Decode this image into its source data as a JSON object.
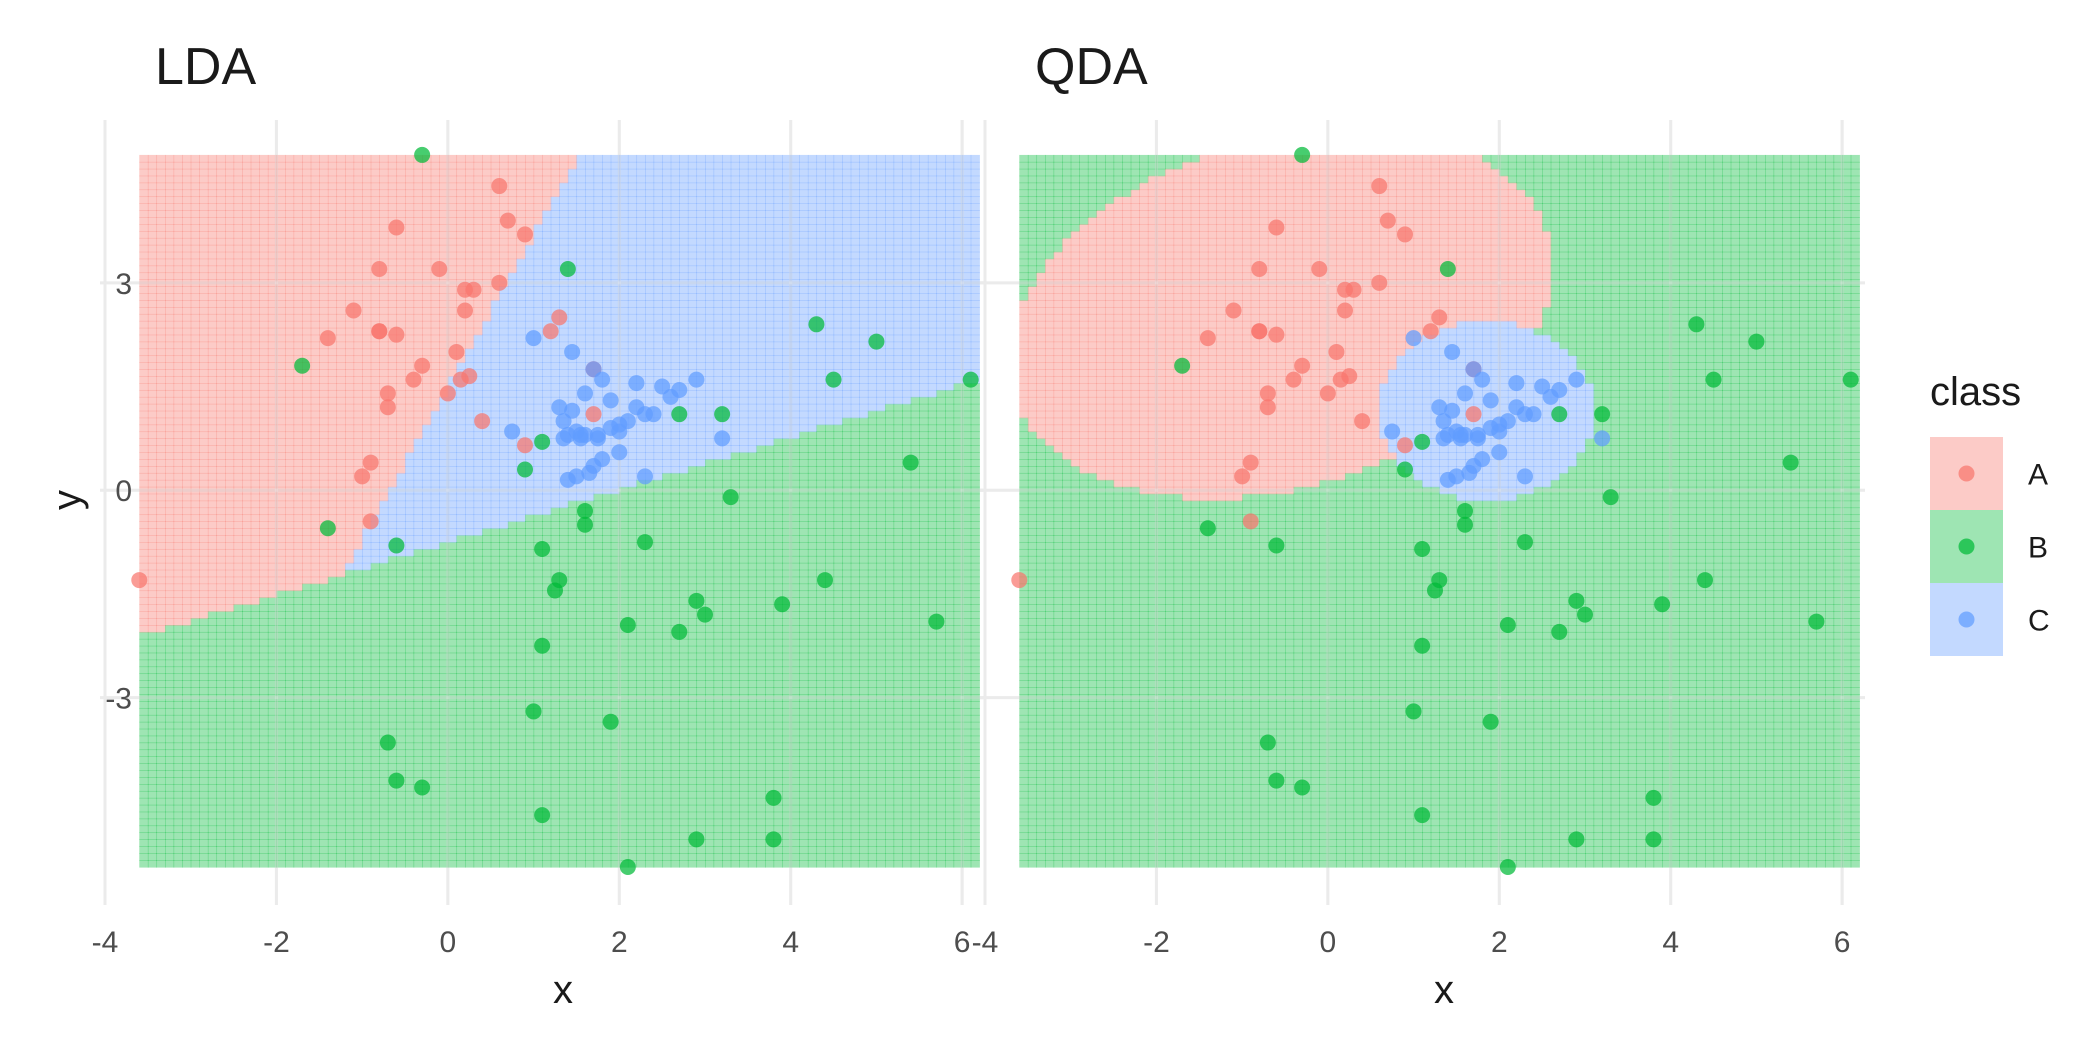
{
  "colors": {
    "A": "#F8766D",
    "B": "#00BA38",
    "C": "#619CFF",
    "grid": "#EBEBEB",
    "text": "#1A1A1A",
    "tick_text": "#4D4D4D"
  },
  "legend": {
    "title": "class",
    "entries": [
      {
        "label": "A",
        "class": "A"
      },
      {
        "label": "B",
        "class": "B"
      },
      {
        "label": "C",
        "class": "C"
      }
    ]
  },
  "chart_data": [
    {
      "type": "scatter",
      "title": "LDA",
      "xlabel": "x",
      "ylabel": "y",
      "xlim": [
        -4,
        6.5
      ],
      "ylim": [
        -6,
        5.5
      ],
      "xticks": [
        -4,
        -2,
        0,
        2,
        4,
        6
      ],
      "yticks": [
        -3,
        0,
        3
      ],
      "grid": true,
      "region_extent": {
        "x": [
          -3.6,
          6.2
        ],
        "y": [
          -5.45,
          4.85
        ]
      },
      "boundary": "linear",
      "series": [
        {
          "name": "A",
          "x": [
            -0.6,
            -0.1,
            0.6,
            0.9,
            -0.8,
            0.3,
            1.2,
            -1.4,
            -0.7,
            -0.8,
            0.1,
            0.6,
            0.7,
            -1.1,
            -0.9,
            -1.0,
            -0.9,
            0.2,
            -0.3,
            0.0,
            -0.4,
            0.4,
            -0.7,
            1.3,
            0.9,
            1.7,
            1.7,
            -0.8,
            -3.6,
            0.2,
            0.15,
            0.25,
            -0.6
          ],
          "y": [
            3.8,
            3.2,
            4.4,
            3.7,
            3.2,
            2.9,
            2.3,
            2.2,
            1.4,
            2.3,
            2.0,
            3.0,
            3.9,
            2.6,
            0.4,
            0.2,
            -0.45,
            2.6,
            1.8,
            1.4,
            1.6,
            1.0,
            1.2,
            2.5,
            0.65,
            1.1,
            1.75,
            2.3,
            -1.3,
            2.9,
            1.6,
            1.65,
            2.25
          ]
        },
        {
          "name": "B",
          "x": [
            -0.3,
            1.4,
            -1.7,
            -1.4,
            -0.6,
            0.9,
            1.1,
            1.3,
            1.25,
            1.1,
            1.6,
            1.6,
            2.3,
            2.1,
            2.7,
            2.9,
            3.0,
            3.3,
            3.2,
            2.7,
            1.9,
            1.0,
            -0.7,
            -0.6,
            -0.3,
            1.1,
            2.1,
            2.9,
            3.8,
            3.8,
            3.9,
            4.3,
            4.4,
            4.5,
            5.0,
            5.4,
            5.7,
            6.1,
            1.1
          ],
          "y": [
            4.85,
            3.2,
            1.8,
            -0.55,
            -0.8,
            0.3,
            -0.85,
            -1.3,
            -1.45,
            -2.25,
            -0.3,
            -0.5,
            -0.75,
            -1.95,
            -2.05,
            -1.6,
            -1.8,
            -0.1,
            1.1,
            1.1,
            -3.35,
            -3.2,
            -3.65,
            -4.2,
            -4.3,
            -4.7,
            -5.45,
            -5.05,
            -5.05,
            -4.45,
            -1.65,
            2.4,
            -1.3,
            1.6,
            2.15,
            0.4,
            -1.9,
            1.6,
            0.7
          ]
        },
        {
          "name": "C",
          "x": [
            1.0,
            1.3,
            1.35,
            1.45,
            1.6,
            1.7,
            1.8,
            1.9,
            2.0,
            2.2,
            2.3,
            2.5,
            2.6,
            2.7,
            2.9,
            1.4,
            1.5,
            1.6,
            1.75,
            1.9,
            2.0,
            2.1,
            2.2,
            2.4,
            3.2,
            1.35,
            1.55,
            1.7,
            1.8,
            2.0,
            2.3,
            1.4,
            1.5,
            1.65,
            1.75,
            0.75,
            1.45,
            1.55
          ],
          "y": [
            2.2,
            1.2,
            1.0,
            1.15,
            1.4,
            1.75,
            1.6,
            1.3,
            0.95,
            1.55,
            1.1,
            1.5,
            1.35,
            1.45,
            1.6,
            0.8,
            0.85,
            0.8,
            0.8,
            0.9,
            0.85,
            1.0,
            1.2,
            1.1,
            0.75,
            0.75,
            0.8,
            0.35,
            0.45,
            0.55,
            0.2,
            0.15,
            0.2,
            0.25,
            0.75,
            0.85,
            2.0,
            0.75
          ]
        }
      ]
    },
    {
      "type": "scatter",
      "title": "QDA",
      "xlabel": "x",
      "ylabel": "",
      "xlim": [
        -4,
        6.5
      ],
      "ylim": [
        -6,
        5.5
      ],
      "xticks": [
        -4,
        -2,
        0,
        2,
        4,
        6
      ],
      "yticks": [
        -3,
        0,
        3
      ],
      "grid": true,
      "region_extent": {
        "x": [
          -3.6,
          6.2
        ],
        "y": [
          -5.45,
          4.85
        ]
      },
      "boundary": "quadratic",
      "series": [
        {
          "name": "A",
          "x": [
            -0.6,
            -0.1,
            0.6,
            0.9,
            -0.8,
            0.3,
            1.2,
            -1.4,
            -0.7,
            -0.8,
            0.1,
            0.6,
            0.7,
            -1.1,
            -0.9,
            -1.0,
            -0.9,
            0.2,
            -0.3,
            0.0,
            -0.4,
            0.4,
            -0.7,
            1.3,
            0.9,
            1.7,
            1.7,
            -0.8,
            -3.6,
            0.2,
            0.15,
            0.25,
            -0.6
          ],
          "y": [
            3.8,
            3.2,
            4.4,
            3.7,
            3.2,
            2.9,
            2.3,
            2.2,
            1.4,
            2.3,
            2.0,
            3.0,
            3.9,
            2.6,
            0.4,
            0.2,
            -0.45,
            2.6,
            1.8,
            1.4,
            1.6,
            1.0,
            1.2,
            2.5,
            0.65,
            1.1,
            1.75,
            2.3,
            -1.3,
            2.9,
            1.6,
            1.65,
            2.25
          ]
        },
        {
          "name": "B",
          "x": [
            -0.3,
            1.4,
            -1.7,
            -1.4,
            -0.6,
            0.9,
            1.1,
            1.3,
            1.25,
            1.1,
            1.6,
            1.6,
            2.3,
            2.1,
            2.7,
            2.9,
            3.0,
            3.3,
            3.2,
            2.7,
            1.9,
            1.0,
            -0.7,
            -0.6,
            -0.3,
            1.1,
            2.1,
            2.9,
            3.8,
            3.8,
            3.9,
            4.3,
            4.4,
            4.5,
            5.0,
            5.4,
            5.7,
            6.1,
            1.1
          ],
          "y": [
            4.85,
            3.2,
            1.8,
            -0.55,
            -0.8,
            0.3,
            -0.85,
            -1.3,
            -1.45,
            -2.25,
            -0.3,
            -0.5,
            -0.75,
            -1.95,
            -2.05,
            -1.6,
            -1.8,
            -0.1,
            1.1,
            1.1,
            -3.35,
            -3.2,
            -3.65,
            -4.2,
            -4.3,
            -4.7,
            -5.45,
            -5.05,
            -5.05,
            -4.45,
            -1.65,
            2.4,
            -1.3,
            1.6,
            2.15,
            0.4,
            -1.9,
            1.6,
            0.7
          ]
        },
        {
          "name": "C",
          "x": [
            1.0,
            1.3,
            1.35,
            1.45,
            1.6,
            1.7,
            1.8,
            1.9,
            2.0,
            2.2,
            2.3,
            2.5,
            2.6,
            2.7,
            2.9,
            1.4,
            1.5,
            1.6,
            1.75,
            1.9,
            2.0,
            2.1,
            2.2,
            2.4,
            3.2,
            1.35,
            1.55,
            1.7,
            1.8,
            2.0,
            2.3,
            1.4,
            1.5,
            1.65,
            1.75,
            0.75,
            1.45,
            1.55
          ],
          "y": [
            2.2,
            1.2,
            1.0,
            1.15,
            1.4,
            1.75,
            1.6,
            1.3,
            0.95,
            1.55,
            1.1,
            1.5,
            1.35,
            1.45,
            1.6,
            0.8,
            0.85,
            0.8,
            0.8,
            0.9,
            0.85,
            1.0,
            1.2,
            1.1,
            0.75,
            0.75,
            0.8,
            0.35,
            0.45,
            0.55,
            0.2,
            0.15,
            0.2,
            0.25,
            0.75,
            0.85,
            2.0,
            0.75
          ]
        }
      ]
    }
  ]
}
